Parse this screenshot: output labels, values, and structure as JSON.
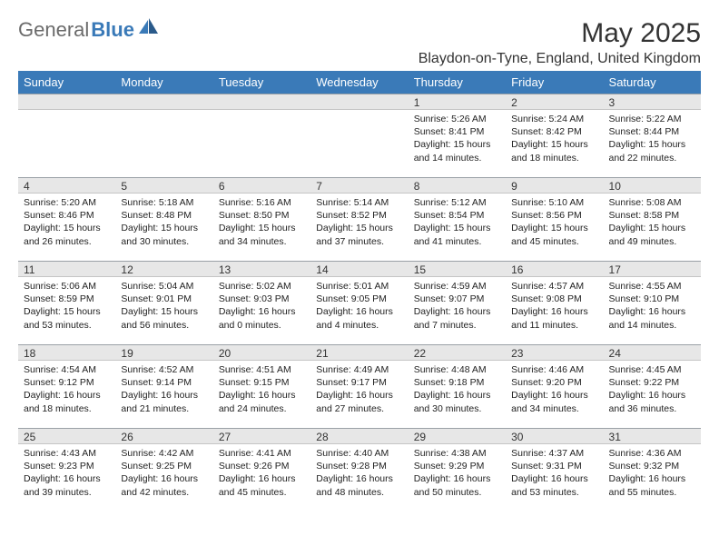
{
  "brand": {
    "text1": "General",
    "text2": "Blue",
    "color1": "#6b6b6b",
    "color2": "#3a7ab8"
  },
  "header": {
    "title": "May 2025",
    "location": "Blaydon-on-Tyne, England, United Kingdom"
  },
  "colors": {
    "header_bg": "#3a7ab8",
    "header_text": "#ffffff",
    "daynum_bg": "#e7e7e7",
    "text": "#222222"
  },
  "weekdays": [
    "Sunday",
    "Monday",
    "Tuesday",
    "Wednesday",
    "Thursday",
    "Friday",
    "Saturday"
  ],
  "weeks": [
    [
      null,
      null,
      null,
      null,
      {
        "d": "1",
        "sr": "5:26 AM",
        "ss": "8:41 PM",
        "dl": "15 hours and 14 minutes."
      },
      {
        "d": "2",
        "sr": "5:24 AM",
        "ss": "8:42 PM",
        "dl": "15 hours and 18 minutes."
      },
      {
        "d": "3",
        "sr": "5:22 AM",
        "ss": "8:44 PM",
        "dl": "15 hours and 22 minutes."
      }
    ],
    [
      {
        "d": "4",
        "sr": "5:20 AM",
        "ss": "8:46 PM",
        "dl": "15 hours and 26 minutes."
      },
      {
        "d": "5",
        "sr": "5:18 AM",
        "ss": "8:48 PM",
        "dl": "15 hours and 30 minutes."
      },
      {
        "d": "6",
        "sr": "5:16 AM",
        "ss": "8:50 PM",
        "dl": "15 hours and 34 minutes."
      },
      {
        "d": "7",
        "sr": "5:14 AM",
        "ss": "8:52 PM",
        "dl": "15 hours and 37 minutes."
      },
      {
        "d": "8",
        "sr": "5:12 AM",
        "ss": "8:54 PM",
        "dl": "15 hours and 41 minutes."
      },
      {
        "d": "9",
        "sr": "5:10 AM",
        "ss": "8:56 PM",
        "dl": "15 hours and 45 minutes."
      },
      {
        "d": "10",
        "sr": "5:08 AM",
        "ss": "8:58 PM",
        "dl": "15 hours and 49 minutes."
      }
    ],
    [
      {
        "d": "11",
        "sr": "5:06 AM",
        "ss": "8:59 PM",
        "dl": "15 hours and 53 minutes."
      },
      {
        "d": "12",
        "sr": "5:04 AM",
        "ss": "9:01 PM",
        "dl": "15 hours and 56 minutes."
      },
      {
        "d": "13",
        "sr": "5:02 AM",
        "ss": "9:03 PM",
        "dl": "16 hours and 0 minutes."
      },
      {
        "d": "14",
        "sr": "5:01 AM",
        "ss": "9:05 PM",
        "dl": "16 hours and 4 minutes."
      },
      {
        "d": "15",
        "sr": "4:59 AM",
        "ss": "9:07 PM",
        "dl": "16 hours and 7 minutes."
      },
      {
        "d": "16",
        "sr": "4:57 AM",
        "ss": "9:08 PM",
        "dl": "16 hours and 11 minutes."
      },
      {
        "d": "17",
        "sr": "4:55 AM",
        "ss": "9:10 PM",
        "dl": "16 hours and 14 minutes."
      }
    ],
    [
      {
        "d": "18",
        "sr": "4:54 AM",
        "ss": "9:12 PM",
        "dl": "16 hours and 18 minutes."
      },
      {
        "d": "19",
        "sr": "4:52 AM",
        "ss": "9:14 PM",
        "dl": "16 hours and 21 minutes."
      },
      {
        "d": "20",
        "sr": "4:51 AM",
        "ss": "9:15 PM",
        "dl": "16 hours and 24 minutes."
      },
      {
        "d": "21",
        "sr": "4:49 AM",
        "ss": "9:17 PM",
        "dl": "16 hours and 27 minutes."
      },
      {
        "d": "22",
        "sr": "4:48 AM",
        "ss": "9:18 PM",
        "dl": "16 hours and 30 minutes."
      },
      {
        "d": "23",
        "sr": "4:46 AM",
        "ss": "9:20 PM",
        "dl": "16 hours and 34 minutes."
      },
      {
        "d": "24",
        "sr": "4:45 AM",
        "ss": "9:22 PM",
        "dl": "16 hours and 36 minutes."
      }
    ],
    [
      {
        "d": "25",
        "sr": "4:43 AM",
        "ss": "9:23 PM",
        "dl": "16 hours and 39 minutes."
      },
      {
        "d": "26",
        "sr": "4:42 AM",
        "ss": "9:25 PM",
        "dl": "16 hours and 42 minutes."
      },
      {
        "d": "27",
        "sr": "4:41 AM",
        "ss": "9:26 PM",
        "dl": "16 hours and 45 minutes."
      },
      {
        "d": "28",
        "sr": "4:40 AM",
        "ss": "9:28 PM",
        "dl": "16 hours and 48 minutes."
      },
      {
        "d": "29",
        "sr": "4:38 AM",
        "ss": "9:29 PM",
        "dl": "16 hours and 50 minutes."
      },
      {
        "d": "30",
        "sr": "4:37 AM",
        "ss": "9:31 PM",
        "dl": "16 hours and 53 minutes."
      },
      {
        "d": "31",
        "sr": "4:36 AM",
        "ss": "9:32 PM",
        "dl": "16 hours and 55 minutes."
      }
    ]
  ],
  "labels": {
    "sunrise": "Sunrise:",
    "sunset": "Sunset:",
    "daylight": "Daylight:"
  }
}
